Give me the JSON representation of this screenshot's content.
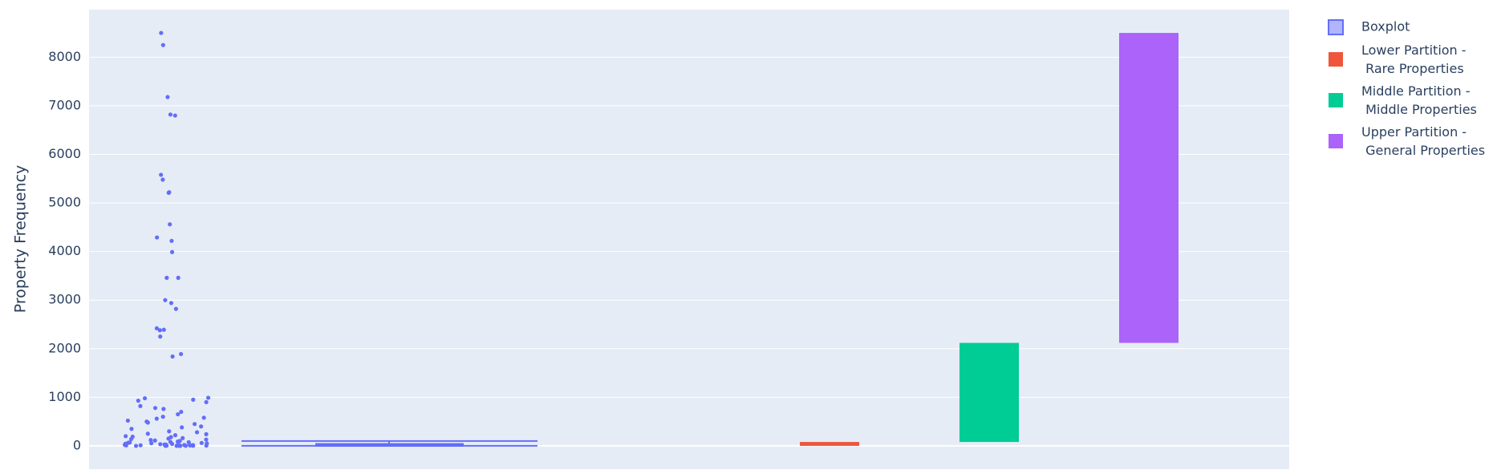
{
  "chart_data": {
    "type": "box_bar",
    "ylabel": "Property Frequency",
    "ylim": [
      -480,
      8980
    ],
    "yticks": [
      0,
      1000,
      2000,
      3000,
      4000,
      5000,
      6000,
      7000,
      8000
    ],
    "grid": true,
    "legend": "top-right",
    "box": {
      "name": "Boxplot",
      "color": "#636efa",
      "lowerfence": 0,
      "q1": 0,
      "median": 10,
      "q3": 40,
      "upperfence": 100,
      "points": [
        8500,
        8250,
        7180,
        6820,
        6800,
        5580,
        5480,
        5220,
        5210,
        4560,
        4290,
        4220,
        3990,
        3460,
        3460,
        3000,
        2940,
        2820,
        2420,
        2390,
        2380,
        2250,
        1890,
        1840,
        990,
        980,
        950,
        930,
        900,
        820,
        780,
        760,
        700,
        650,
        600,
        580,
        560,
        520,
        500,
        480,
        450,
        400,
        380,
        350,
        300,
        280,
        250,
        240,
        220,
        200,
        190,
        180,
        160,
        150,
        140,
        130,
        120,
        110,
        100,
        90,
        80,
        75,
        70,
        65,
        60,
        55,
        50,
        45,
        40,
        35,
        30,
        28,
        25,
        22,
        20,
        18,
        15,
        12,
        10,
        8,
        6,
        5,
        4,
        3,
        2,
        1,
        0,
        0,
        0,
        0
      ]
    },
    "series": [
      {
        "name": "Lower Partition -\n Rare Properties",
        "color": "#ef553b",
        "base": 0,
        "values": [
          80
        ]
      },
      {
        "name": "Middle Partition -\n Middle Properties",
        "color": "#00cc96",
        "base": 80,
        "values": [
          2040
        ]
      },
      {
        "name": "Upper Partition -\n General Properties",
        "color": "#ab63fa",
        "base": 2120,
        "values": [
          6380
        ]
      }
    ]
  }
}
